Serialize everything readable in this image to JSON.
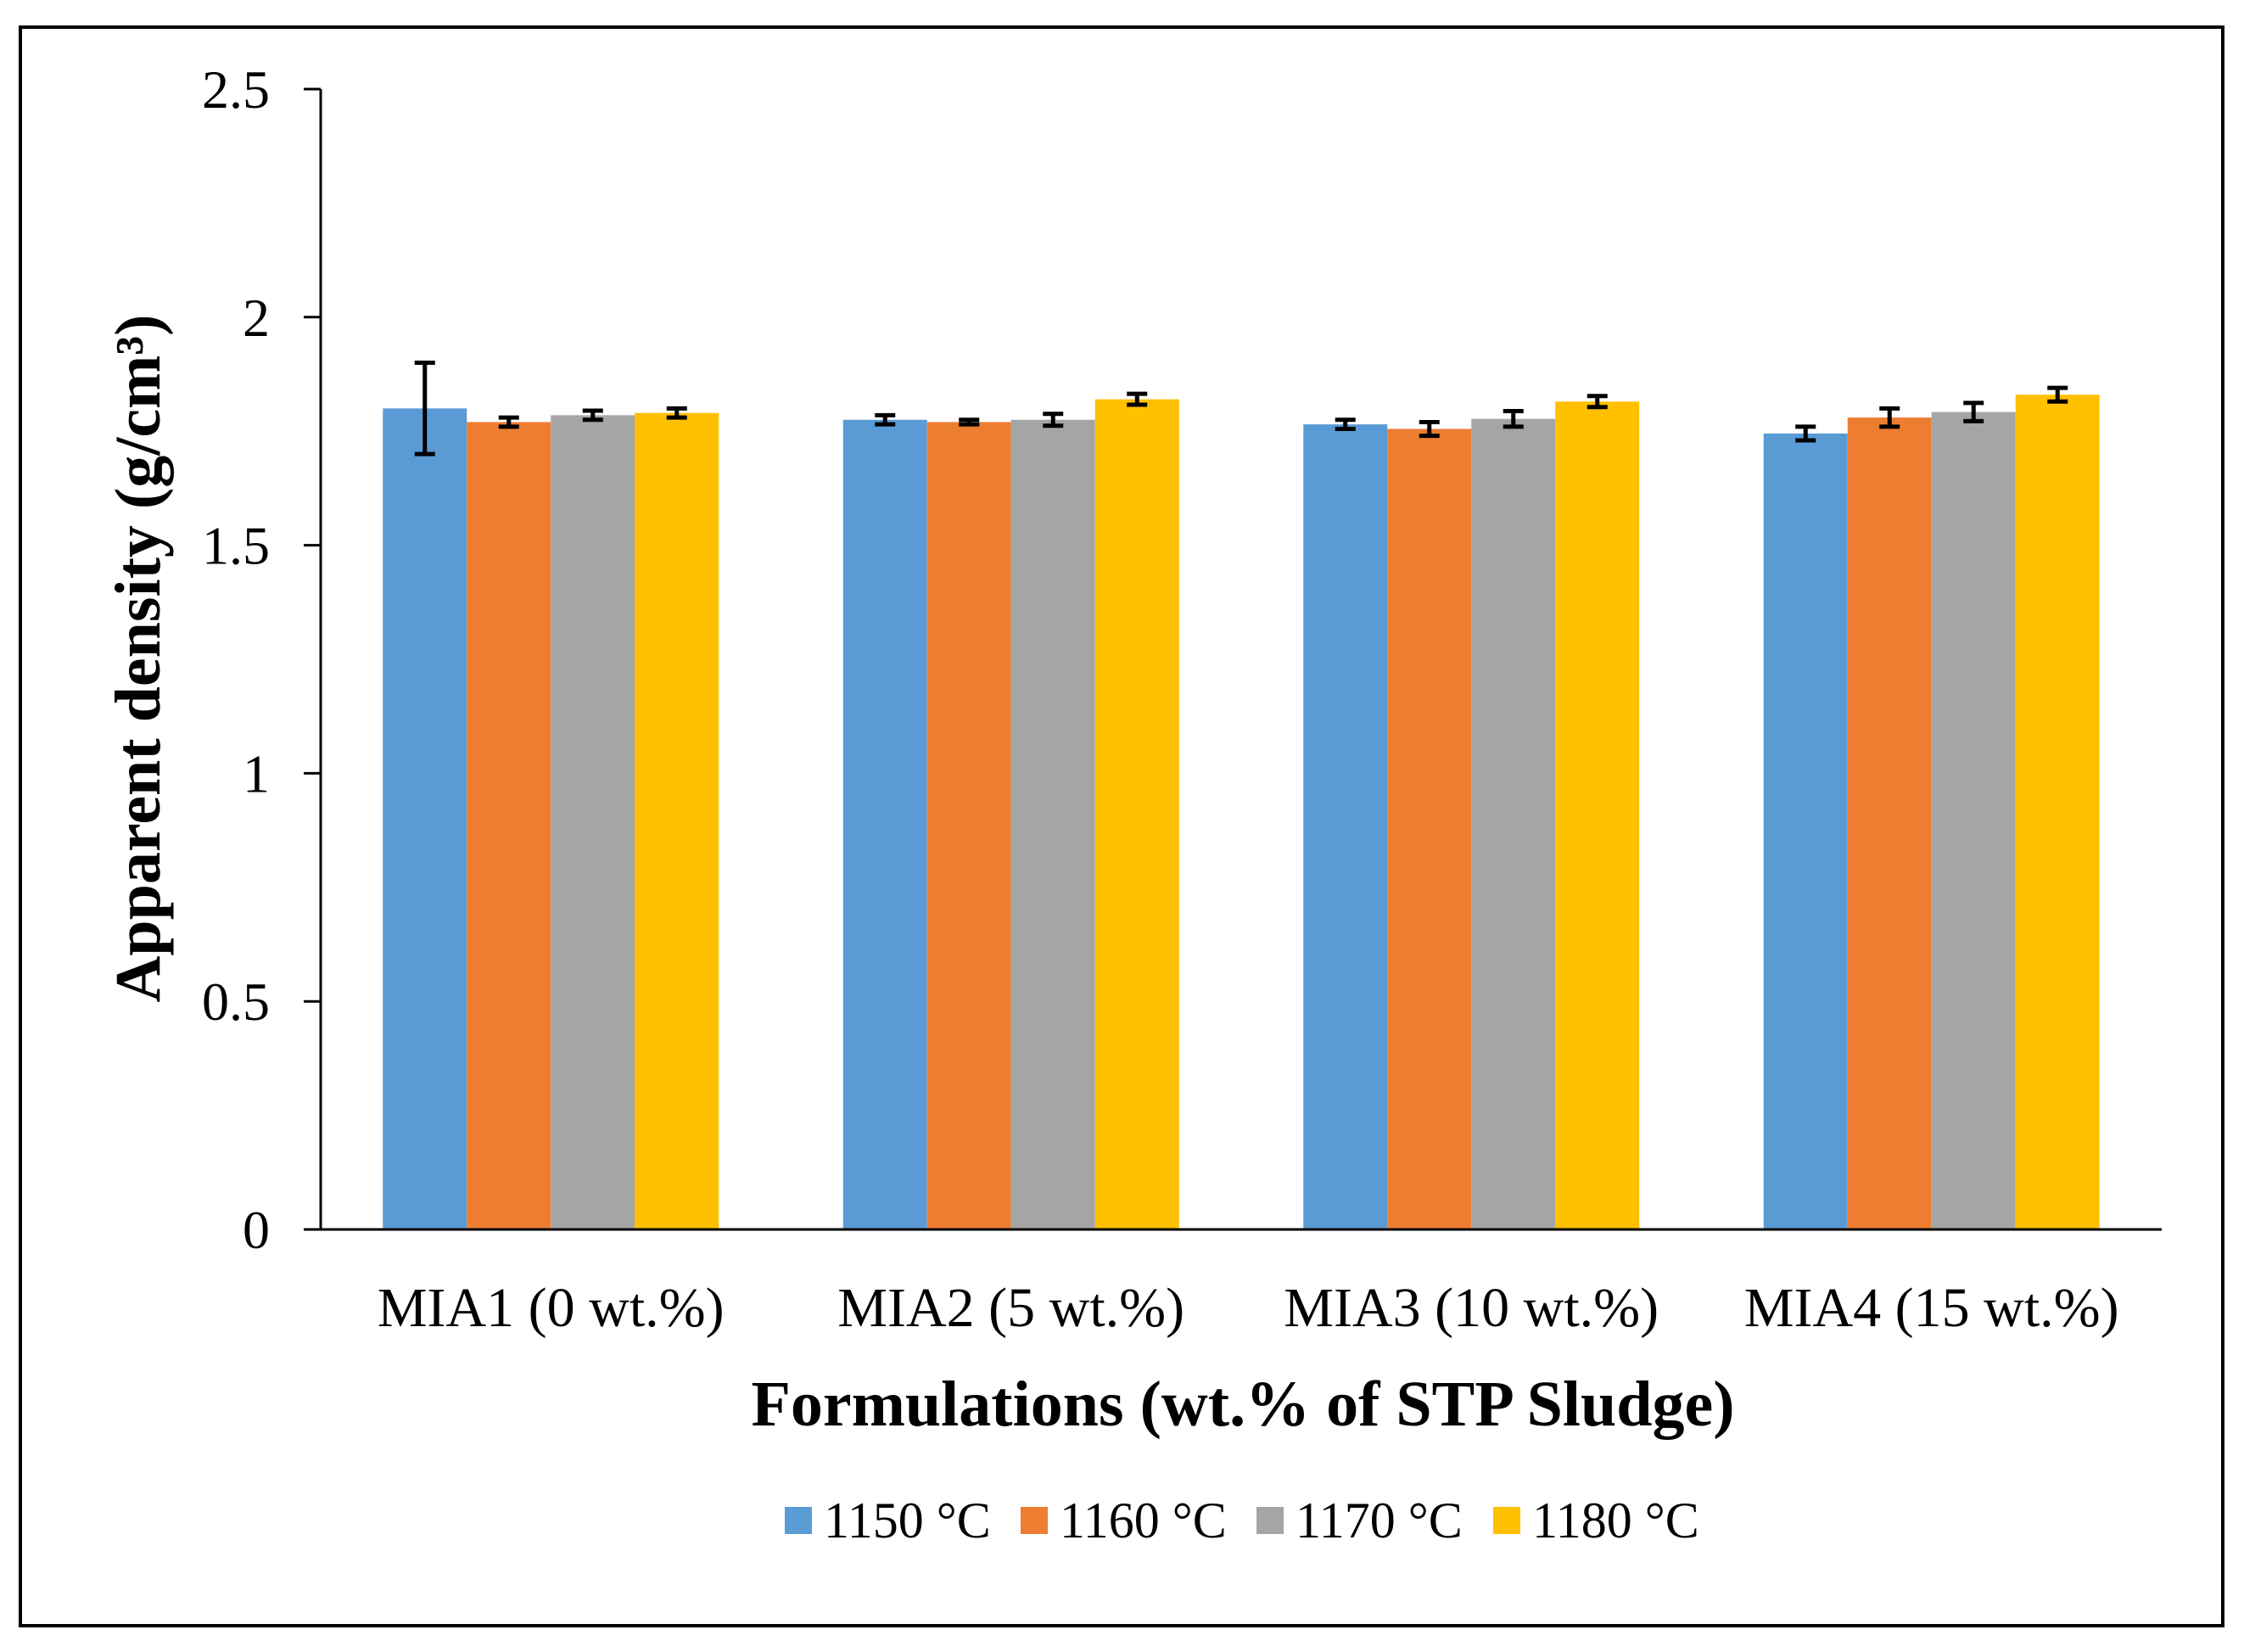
{
  "chart_data": {
    "type": "bar",
    "title": "",
    "xlabel": "Formulations (wt.% of STP Sludge)",
    "ylabel": "Apparent density (g/cm³)",
    "ylim": [
      0,
      2.5
    ],
    "yticks": [
      0,
      0.5,
      1,
      1.5,
      2,
      2.5
    ],
    "ytick_labels": [
      "0",
      "0.5",
      "1",
      "1.5",
      "2",
      "2.5"
    ],
    "grid": false,
    "legend_position": "bottom",
    "categories": [
      "MIA1 (0 wt.%)",
      "MIA2 (5 wt.%)",
      "MIA3 (10 wt.%)",
      "MIA4 (15 wt.%)"
    ],
    "series": [
      {
        "name": "1150 °C",
        "color": "#5B9BD5",
        "values": [
          1.8,
          1.775,
          1.765,
          1.745
        ],
        "errors": [
          0.1,
          0.01,
          0.01,
          0.015
        ]
      },
      {
        "name": "1160 °C",
        "color": "#ED7D31",
        "values": [
          1.77,
          1.77,
          1.755,
          1.78
        ],
        "errors": [
          0.01,
          0.005,
          0.015,
          0.02
        ]
      },
      {
        "name": "1170 °C",
        "color": "#A5A5A5",
        "values": [
          1.785,
          1.775,
          1.777,
          1.792
        ],
        "errors": [
          0.01,
          0.013,
          0.017,
          0.02
        ]
      },
      {
        "name": "1180 °C",
        "color": "#FFC000",
        "values": [
          1.79,
          1.82,
          1.815,
          1.83
        ],
        "errors": [
          0.01,
          0.012,
          0.012,
          0.015
        ]
      }
    ]
  }
}
